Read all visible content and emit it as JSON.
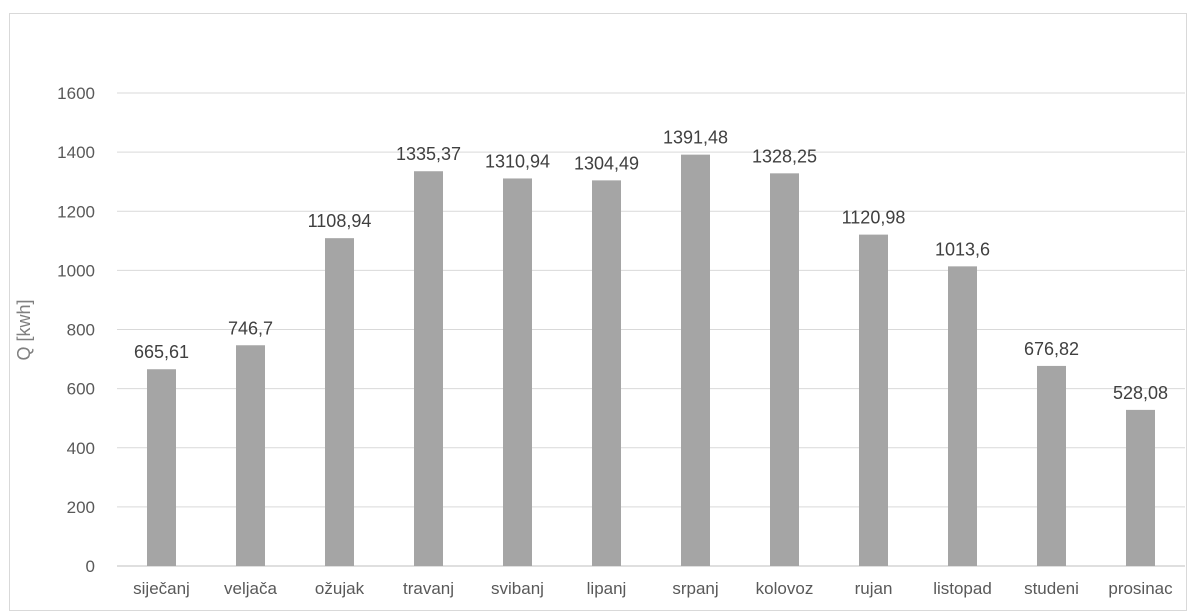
{
  "chart_data": {
    "type": "bar",
    "title": "",
    "xlabel": "",
    "ylabel": "Q [kwh]",
    "ylim": [
      0,
      1600
    ],
    "yticks": [
      0,
      200,
      400,
      600,
      800,
      1000,
      1200,
      1400,
      1600
    ],
    "grid": true,
    "legend": "none",
    "bar_color": "#a5a5a5",
    "categories": [
      "siječanj",
      "veljača",
      "ožujak",
      "travanj",
      "svibanj",
      "lipanj",
      "srpanj",
      "kolovoz",
      "rujan",
      "listopad",
      "studeni",
      "prosinac"
    ],
    "values": [
      665.61,
      746.7,
      1108.94,
      1335.37,
      1310.94,
      1304.49,
      1391.48,
      1328.25,
      1120.98,
      1013.6,
      676.82,
      528.08
    ],
    "data_labels": [
      "665,61",
      "746,7",
      "1108,94",
      "1335,37",
      "1310,94",
      "1304,49",
      "1391,48",
      "1328,25",
      "1120,98",
      "1013,6",
      "676,82",
      "528,08"
    ]
  }
}
